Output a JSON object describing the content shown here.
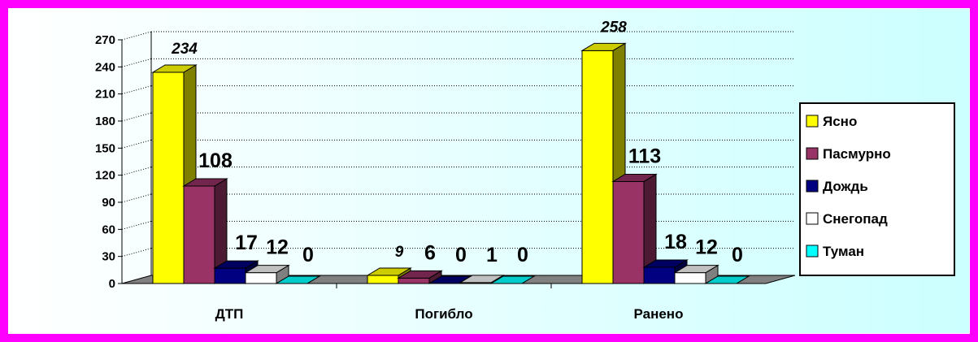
{
  "chart_data": {
    "type": "bar",
    "title": "",
    "xlabel": "",
    "ylabel": "",
    "categories": [
      "ДТП",
      "Погибло",
      "Ранено"
    ],
    "series": [
      {
        "name": "Ясно",
        "values": [
          234,
          9,
          258
        ],
        "color": "#ffff00",
        "side": "#808000",
        "top": "#cccc00"
      },
      {
        "name": "Пасмурно",
        "values": [
          108,
          6,
          113
        ],
        "color": "#993366",
        "side": "#4d1a33",
        "top": "#73264d"
      },
      {
        "name": "Дождь",
        "values": [
          17,
          0,
          18
        ],
        "color": "#000080",
        "side": "#000040",
        "top": "#000060"
      },
      {
        "name": "Снегопад",
        "values": [
          12,
          1,
          12
        ],
        "color": "#ffffff",
        "side": "#808080",
        "top": "#c0c0c0"
      },
      {
        "name": "Туман",
        "values": [
          0,
          0,
          0
        ],
        "color": "#00ffff",
        "side": "#008080",
        "top": "#00cccc"
      }
    ],
    "data_labels": [
      [
        "234",
        "108",
        "17",
        "12",
        "0"
      ],
      [
        "9",
        "6",
        "0",
        "1",
        "0"
      ],
      [
        "258",
        "113",
        "18",
        "12",
        "0"
      ]
    ],
    "italic_labels": [
      [
        true,
        false,
        false,
        false,
        false
      ],
      [
        true,
        false,
        false,
        false,
        false
      ],
      [
        true,
        false,
        false,
        false,
        false
      ]
    ],
    "ylim": [
      0,
      270
    ],
    "yticks": [
      "0",
      "30",
      "60",
      "90",
      "120",
      "150",
      "180",
      "210",
      "240",
      "270"
    ],
    "grid": true,
    "legend_position": "right",
    "colors": {
      "frame": "#ff00ff",
      "plot_bg_top": "#ffffff",
      "plot_bg_bottom": "#ccffff",
      "floor": "#808080"
    }
  }
}
